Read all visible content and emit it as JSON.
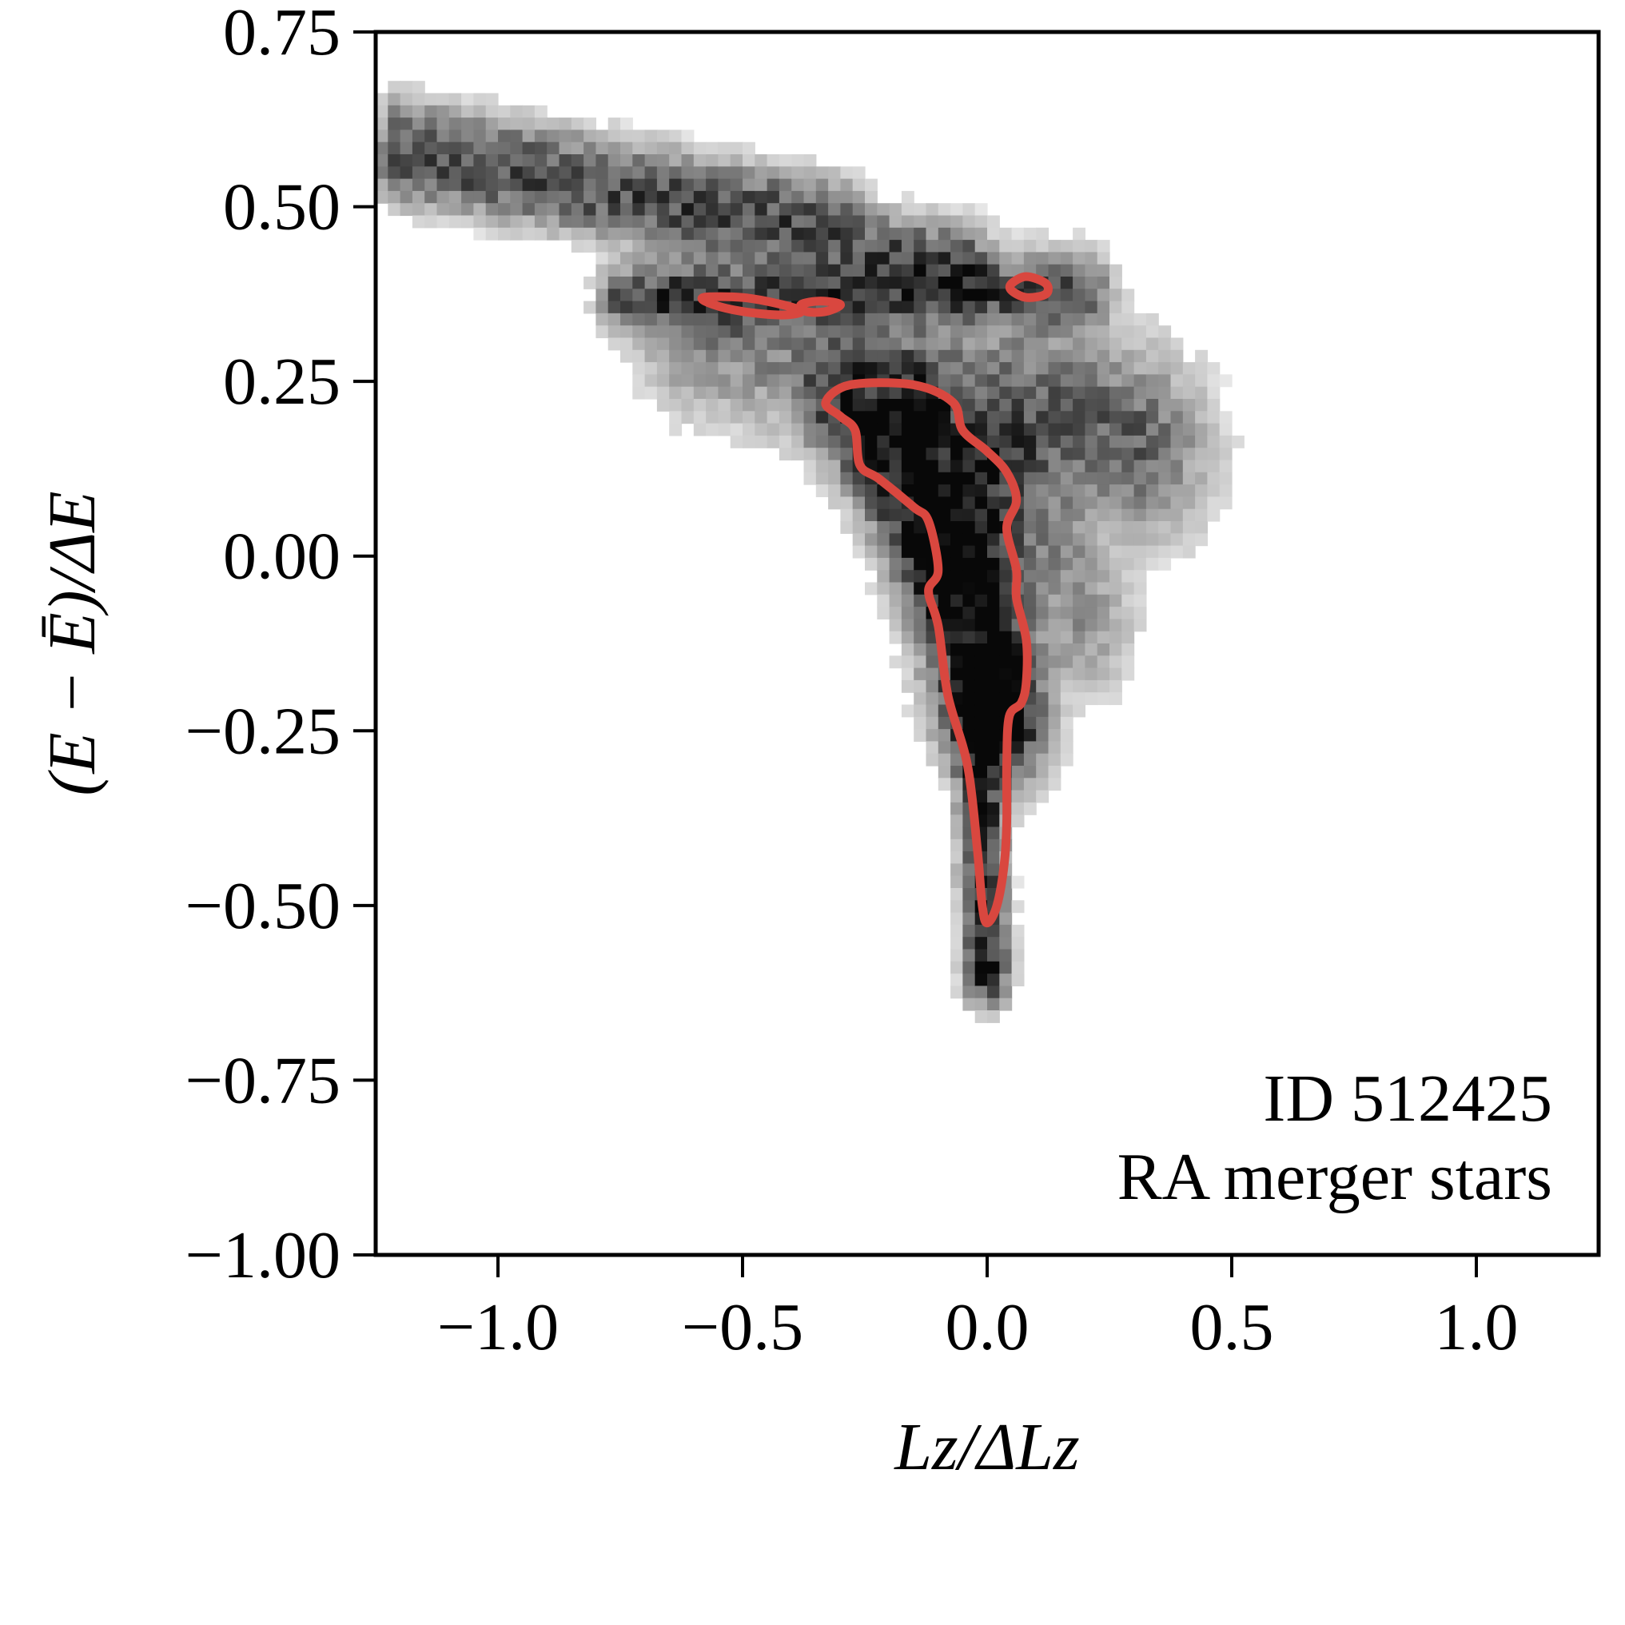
{
  "chart_data": {
    "type": "heatmap",
    "subtype": "2d-histogram-with-contour",
    "xlabel": "Lz/ΔLz",
    "ylabel": "(E − Ē)/ΔE",
    "xlim": [
      -1.25,
      1.25
    ],
    "ylim": [
      -1.0,
      0.75
    ],
    "xticks": [
      -1.0,
      -0.5,
      0.0,
      0.5,
      1.0
    ],
    "xtick_labels": [
      "−1.0",
      "−0.5",
      "0.0",
      "0.5",
      "1.0"
    ],
    "yticks": [
      0.75,
      0.5,
      0.25,
      0.0,
      -0.25,
      -0.5,
      -0.75,
      -1.0
    ],
    "ytick_labels": [
      "0.75",
      "0.50",
      "0.25",
      "0.00",
      "−0.25",
      "−0.50",
      "−0.75",
      "−1.00"
    ],
    "grid": false,
    "colormap": "greys",
    "contour_color": "#d9473f",
    "annotations": [
      "ID 512425",
      "RA merger stars"
    ],
    "density_components": [
      {
        "x0": -1.2,
        "y0": 0.56,
        "x1": -0.05,
        "y1": 0.42,
        "width": 0.035,
        "weight": 0.55
      },
      {
        "x0": -1.2,
        "y0": 0.62,
        "x1": -0.3,
        "y1": 0.5,
        "width": 0.03,
        "weight": 0.3
      },
      {
        "x0": -0.75,
        "y0": 0.37,
        "x1": 0.2,
        "y1": 0.38,
        "width": 0.03,
        "weight": 0.55
      },
      {
        "x0": -0.6,
        "y0": 0.32,
        "x1": 0.3,
        "y1": 0.16,
        "width": 0.07,
        "weight": 0.35
      },
      {
        "x0": 0.1,
        "y0": 0.3,
        "x1": 0.35,
        "y1": 0.15,
        "width": 0.09,
        "weight": 0.2
      },
      {
        "x0": -0.3,
        "y0": 0.22,
        "x1": -0.1,
        "y1": 0.0,
        "width": 0.05,
        "weight": 0.6
      },
      {
        "x0": -0.15,
        "y0": 0.2,
        "x1": -0.02,
        "y1": -0.2,
        "width": 0.06,
        "weight": 0.8
      },
      {
        "x0": -0.02,
        "y0": 0.1,
        "x1": 0.05,
        "y1": -0.25,
        "width": 0.05,
        "weight": 0.7
      },
      {
        "x0": -0.02,
        "y0": -0.2,
        "x1": 0.0,
        "y1": -0.6,
        "width": 0.028,
        "weight": 0.9
      },
      {
        "x0": 0.08,
        "y0": 0.12,
        "x1": 0.2,
        "y1": -0.1,
        "width": 0.06,
        "weight": 0.3
      }
    ],
    "contours": [
      {
        "name": "main-contour",
        "points": [
          [
            -0.33,
            0.22
          ],
          [
            -0.28,
            0.245
          ],
          [
            -0.15,
            0.245
          ],
          [
            -0.07,
            0.22
          ],
          [
            -0.05,
            0.18
          ],
          [
            0.0,
            0.15
          ],
          [
            0.04,
            0.12
          ],
          [
            0.06,
            0.08
          ],
          [
            0.04,
            0.04
          ],
          [
            0.06,
            -0.02
          ],
          [
            0.06,
            -0.06
          ],
          [
            0.08,
            -0.12
          ],
          [
            0.08,
            -0.18
          ],
          [
            0.07,
            -0.21
          ],
          [
            0.045,
            -0.23
          ],
          [
            0.04,
            -0.3
          ],
          [
            0.04,
            -0.38
          ],
          [
            0.035,
            -0.44
          ],
          [
            0.02,
            -0.5
          ],
          [
            0.0,
            -0.525
          ],
          [
            -0.01,
            -0.5
          ],
          [
            -0.02,
            -0.42
          ],
          [
            -0.04,
            -0.3
          ],
          [
            -0.08,
            -0.2
          ],
          [
            -0.1,
            -0.1
          ],
          [
            -0.12,
            -0.05
          ],
          [
            -0.1,
            -0.02
          ],
          [
            -0.12,
            0.05
          ],
          [
            -0.15,
            0.07
          ],
          [
            -0.22,
            0.11
          ],
          [
            -0.26,
            0.13
          ],
          [
            -0.27,
            0.18
          ],
          [
            -0.3,
            0.2
          ]
        ]
      },
      {
        "name": "upper-left-contour-1",
        "points": [
          [
            -0.58,
            0.37
          ],
          [
            -0.5,
            0.37
          ],
          [
            -0.42,
            0.36
          ],
          [
            -0.38,
            0.35
          ],
          [
            -0.42,
            0.345
          ],
          [
            -0.5,
            0.35
          ],
          [
            -0.56,
            0.36
          ]
        ]
      },
      {
        "name": "upper-left-contour-2",
        "points": [
          [
            -0.38,
            0.36
          ],
          [
            -0.34,
            0.365
          ],
          [
            -0.3,
            0.36
          ],
          [
            -0.33,
            0.35
          ],
          [
            -0.37,
            0.35
          ]
        ]
      },
      {
        "name": "upper-right-contour",
        "points": [
          [
            0.05,
            0.39
          ],
          [
            0.08,
            0.4
          ],
          [
            0.12,
            0.39
          ],
          [
            0.12,
            0.375
          ],
          [
            0.08,
            0.37
          ],
          [
            0.05,
            0.38
          ]
        ]
      }
    ]
  }
}
